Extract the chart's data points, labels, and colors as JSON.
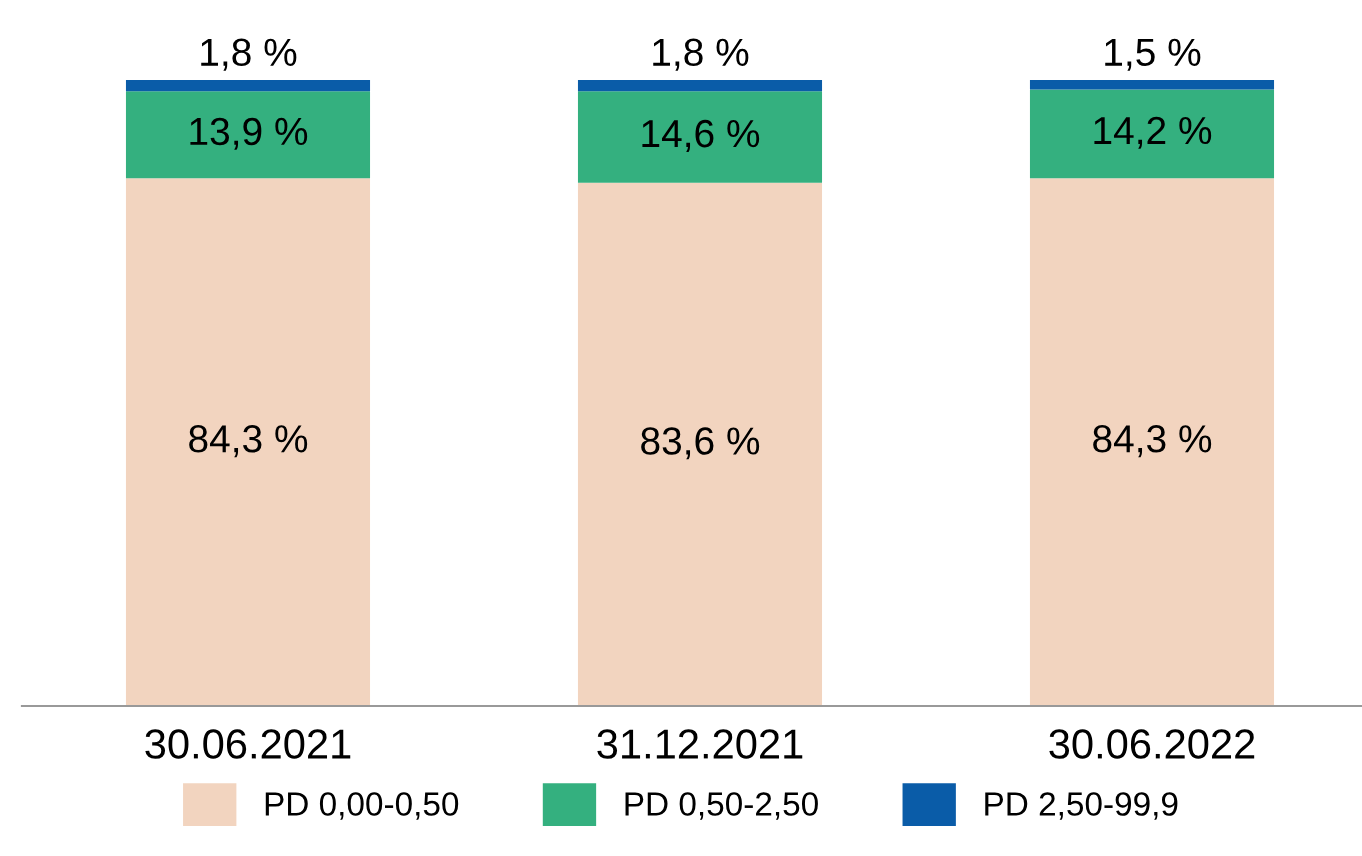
{
  "chart_data": {
    "type": "bar",
    "stacked": true,
    "categories": [
      "30.06.2021",
      "31.12.2021",
      "30.06.2022"
    ],
    "series": [
      {
        "name": "PD 0,00-0,50",
        "color": "#f2d4bf",
        "values": [
          84.3,
          83.6,
          84.3
        ],
        "value_labels": [
          "84,3 %",
          "83,6 %",
          "84,3 %"
        ]
      },
      {
        "name": "PD 0,50-2,50",
        "color": "#34b07f",
        "values": [
          13.9,
          14.6,
          14.2
        ],
        "value_labels": [
          "13,9 %",
          "14,6 %",
          "14,2 %"
        ]
      },
      {
        "name": "PD 2,50-99,9",
        "color": "#0a5ca8",
        "values": [
          1.8,
          1.8,
          1.5
        ],
        "value_labels": [
          "1,8 %",
          "1,8 %",
          "1,5 %"
        ]
      }
    ],
    "legend": "bottom",
    "grid": false
  }
}
